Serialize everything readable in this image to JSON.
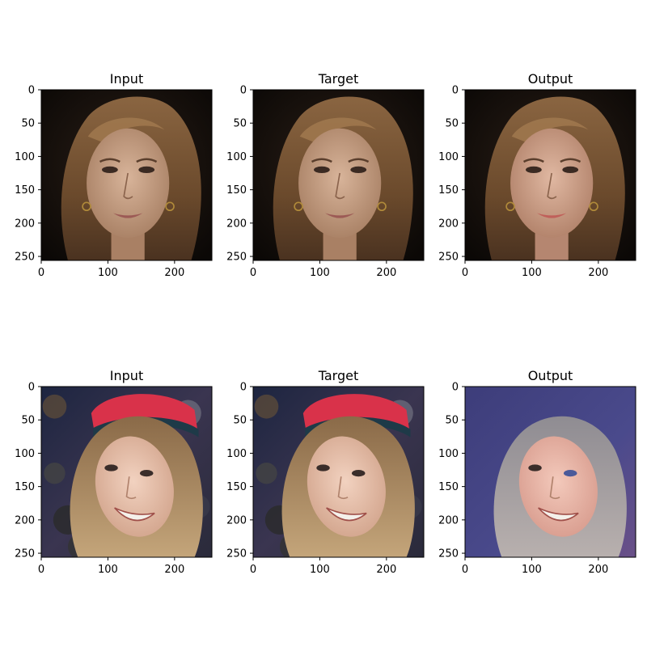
{
  "chart_data": {
    "type": "image_grid",
    "rows": [
      {
        "subject": "woman-with-long-brown-hair",
        "panels": [
          {
            "title": "Input",
            "image": "face-photo-input"
          },
          {
            "title": "Target",
            "image": "face-photo-target"
          },
          {
            "title": "Output",
            "image": "face-photo-generated"
          }
        ]
      },
      {
        "subject": "smiling-woman-with-red-beanie",
        "panels": [
          {
            "title": "Input",
            "image": "face-photo-input"
          },
          {
            "title": "Target",
            "image": "face-photo-target"
          },
          {
            "title": "Output",
            "image": "face-photo-generated"
          }
        ]
      }
    ],
    "xlim": [
      0,
      256
    ],
    "ylim": [
      256,
      0
    ],
    "xticks": [
      0,
      100,
      200
    ],
    "yticks": [
      0,
      50,
      100,
      150,
      200,
      250
    ],
    "xtick_labels": [
      "0",
      "100",
      "200"
    ],
    "ytick_labels": [
      "0",
      "50",
      "100",
      "150",
      "200",
      "250"
    ]
  }
}
